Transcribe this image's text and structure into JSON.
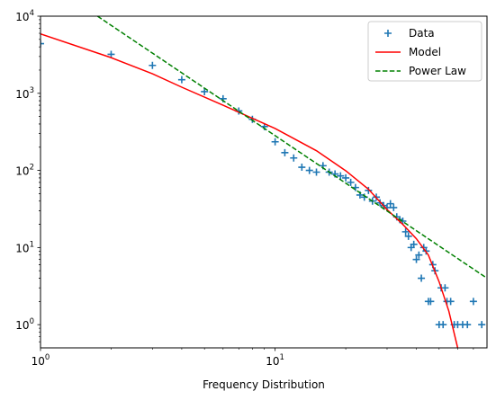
{
  "chart_data": {
    "type": "scatter",
    "title": "",
    "xlabel": "Frequency Distribution",
    "ylabel": "",
    "xscale": "log",
    "yscale": "log",
    "xlim": [
      1,
      80
    ],
    "ylim": [
      0.5,
      10000
    ],
    "x_ticks": [
      {
        "value": 1,
        "base": "10",
        "exp": "0"
      },
      {
        "value": 10,
        "base": "10",
        "exp": "1"
      }
    ],
    "y_ticks": [
      {
        "value": 1,
        "base": "10",
        "exp": "0"
      },
      {
        "value": 10,
        "base": "10",
        "exp": "1"
      },
      {
        "value": 100,
        "base": "10",
        "exp": "2"
      },
      {
        "value": 1000,
        "base": "10",
        "exp": "3"
      },
      {
        "value": 10000,
        "base": "10",
        "exp": "4"
      }
    ],
    "grid": false,
    "legend_position": "top-right",
    "series": [
      {
        "name": "Data",
        "kind": "scatter",
        "marker": "plus",
        "color": "#1f77b4",
        "points": [
          [
            1,
            4400
          ],
          [
            2,
            3200
          ],
          [
            3,
            2300
          ],
          [
            4,
            1500
          ],
          [
            5,
            1050
          ],
          [
            6,
            850
          ],
          [
            7,
            590
          ],
          [
            8,
            460
          ],
          [
            9,
            370
          ],
          [
            10,
            235
          ],
          [
            11,
            170
          ],
          [
            12,
            145
          ],
          [
            13,
            110
          ],
          [
            14,
            100
          ],
          [
            15,
            95
          ],
          [
            16,
            115
          ],
          [
            17,
            95
          ],
          [
            18,
            90
          ],
          [
            19,
            85
          ],
          [
            20,
            80
          ],
          [
            21,
            70
          ],
          [
            22,
            60
          ],
          [
            23,
            48
          ],
          [
            24,
            45
          ],
          [
            25,
            55
          ],
          [
            26,
            40
          ],
          [
            27,
            45
          ],
          [
            28,
            38
          ],
          [
            29,
            35
          ],
          [
            30,
            33
          ],
          [
            31,
            37
          ],
          [
            32,
            33
          ],
          [
            33,
            25
          ],
          [
            34,
            23
          ],
          [
            35,
            22
          ],
          [
            36,
            16
          ],
          [
            37,
            14
          ],
          [
            38,
            10
          ],
          [
            39,
            11
          ],
          [
            40,
            7
          ],
          [
            41,
            8
          ],
          [
            42,
            4
          ],
          [
            43,
            10
          ],
          [
            44,
            9
          ],
          [
            45,
            2
          ],
          [
            46,
            2
          ],
          [
            47,
            6
          ],
          [
            48,
            5
          ],
          [
            50,
            1
          ],
          [
            51,
            3
          ],
          [
            52,
            1
          ],
          [
            53,
            3
          ],
          [
            54,
            2
          ],
          [
            56,
            2
          ],
          [
            58,
            1
          ],
          [
            60,
            1
          ],
          [
            63,
            1
          ],
          [
            66,
            1
          ],
          [
            70,
            2
          ],
          [
            76,
            1
          ],
          [
            85,
            1
          ]
        ]
      },
      {
        "name": "Model",
        "kind": "line",
        "color": "#ff0000",
        "dash": "solid",
        "points": [
          [
            1,
            5900
          ],
          [
            2,
            2900
          ],
          [
            3,
            1790
          ],
          [
            4,
            1200
          ],
          [
            6,
            700
          ],
          [
            10,
            350
          ],
          [
            15,
            180
          ],
          [
            20,
            99
          ],
          [
            25,
            57
          ],
          [
            30,
            31
          ],
          [
            35,
            20
          ],
          [
            40,
            13
          ],
          [
            45,
            8
          ],
          [
            50,
            3.6
          ],
          [
            55,
            1.5
          ],
          [
            60,
            0.5
          ]
        ]
      },
      {
        "name": "Power Law",
        "kind": "line",
        "color": "#008000",
        "dash": "dashed",
        "points": [
          [
            1.75,
            10000
          ],
          [
            80,
            4
          ]
        ]
      }
    ]
  }
}
